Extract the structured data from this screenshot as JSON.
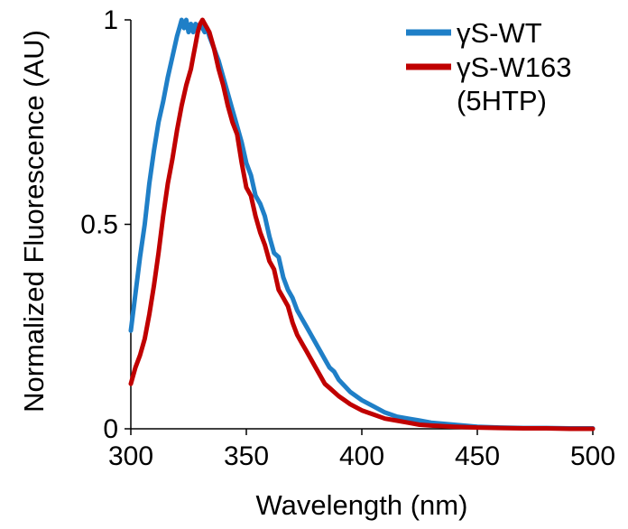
{
  "chart_data": {
    "type": "line",
    "title": "",
    "xlabel": "Wavelength (nm)",
    "ylabel": "Normalized Fluorescence (AU)",
    "xlim": [
      300,
      500
    ],
    "ylim": [
      0,
      1
    ],
    "xticks": [
      300,
      350,
      400,
      450,
      500
    ],
    "yticks": [
      0,
      0.5,
      1
    ],
    "grid": false,
    "legend_position": "top-right",
    "series": [
      {
        "name": "γS-WT",
        "color": "#1f7fc7",
        "x": [
          300,
          302,
          304,
          306,
          308,
          310,
          312,
          314,
          316,
          318,
          320,
          321,
          322,
          323,
          324,
          325,
          326,
          327,
          328,
          329,
          330,
          331,
          332,
          333,
          334,
          336,
          338,
          340,
          342,
          344,
          346,
          348,
          350,
          352,
          354,
          356,
          358,
          360,
          362,
          364,
          366,
          368,
          370,
          372,
          374,
          376,
          378,
          380,
          382,
          384,
          386,
          388,
          390,
          395,
          400,
          405,
          410,
          415,
          420,
          425,
          430,
          440,
          450,
          460,
          470,
          480,
          490,
          500
        ],
        "y": [
          0.24,
          0.33,
          0.42,
          0.5,
          0.6,
          0.68,
          0.75,
          0.8,
          0.86,
          0.91,
          0.96,
          0.98,
          1.0,
          0.98,
          1.0,
          0.97,
          0.99,
          0.97,
          0.99,
          0.98,
          0.99,
          0.98,
          0.97,
          0.98,
          0.96,
          0.93,
          0.9,
          0.86,
          0.82,
          0.78,
          0.74,
          0.7,
          0.65,
          0.62,
          0.57,
          0.55,
          0.52,
          0.47,
          0.43,
          0.42,
          0.37,
          0.34,
          0.32,
          0.29,
          0.27,
          0.25,
          0.23,
          0.21,
          0.19,
          0.17,
          0.15,
          0.14,
          0.12,
          0.09,
          0.07,
          0.055,
          0.04,
          0.03,
          0.025,
          0.02,
          0.015,
          0.01,
          0.005,
          0.003,
          0.002,
          0.002,
          0.001,
          0.001
        ]
      },
      {
        "name": "γS-W163",
        "name_line2": "(5HTP)",
        "color": "#c00000",
        "x": [
          300,
          302,
          304,
          306,
          308,
          310,
          312,
          314,
          316,
          318,
          320,
          322,
          324,
          326,
          327,
          328,
          329,
          330,
          331,
          332,
          333,
          334,
          336,
          338,
          340,
          342,
          344,
          346,
          348,
          350,
          352,
          354,
          356,
          358,
          360,
          362,
          364,
          366,
          368,
          370,
          372,
          374,
          376,
          378,
          380,
          382,
          384,
          386,
          388,
          390,
          395,
          400,
          405,
          410,
          415,
          420,
          425,
          430,
          440,
          450,
          460,
          470,
          480,
          490,
          500
        ],
        "y": [
          0.11,
          0.15,
          0.18,
          0.22,
          0.28,
          0.35,
          0.43,
          0.52,
          0.6,
          0.66,
          0.73,
          0.79,
          0.84,
          0.88,
          0.91,
          0.94,
          0.97,
          0.99,
          1.0,
          0.99,
          0.98,
          0.97,
          0.93,
          0.88,
          0.84,
          0.79,
          0.75,
          0.72,
          0.65,
          0.59,
          0.57,
          0.52,
          0.48,
          0.45,
          0.41,
          0.39,
          0.34,
          0.32,
          0.3,
          0.26,
          0.23,
          0.21,
          0.19,
          0.17,
          0.15,
          0.13,
          0.11,
          0.1,
          0.09,
          0.08,
          0.06,
          0.045,
          0.035,
          0.025,
          0.02,
          0.015,
          0.01,
          0.008,
          0.005,
          0.003,
          0.002,
          0.001,
          0.001,
          0.0,
          0.0
        ]
      }
    ]
  }
}
